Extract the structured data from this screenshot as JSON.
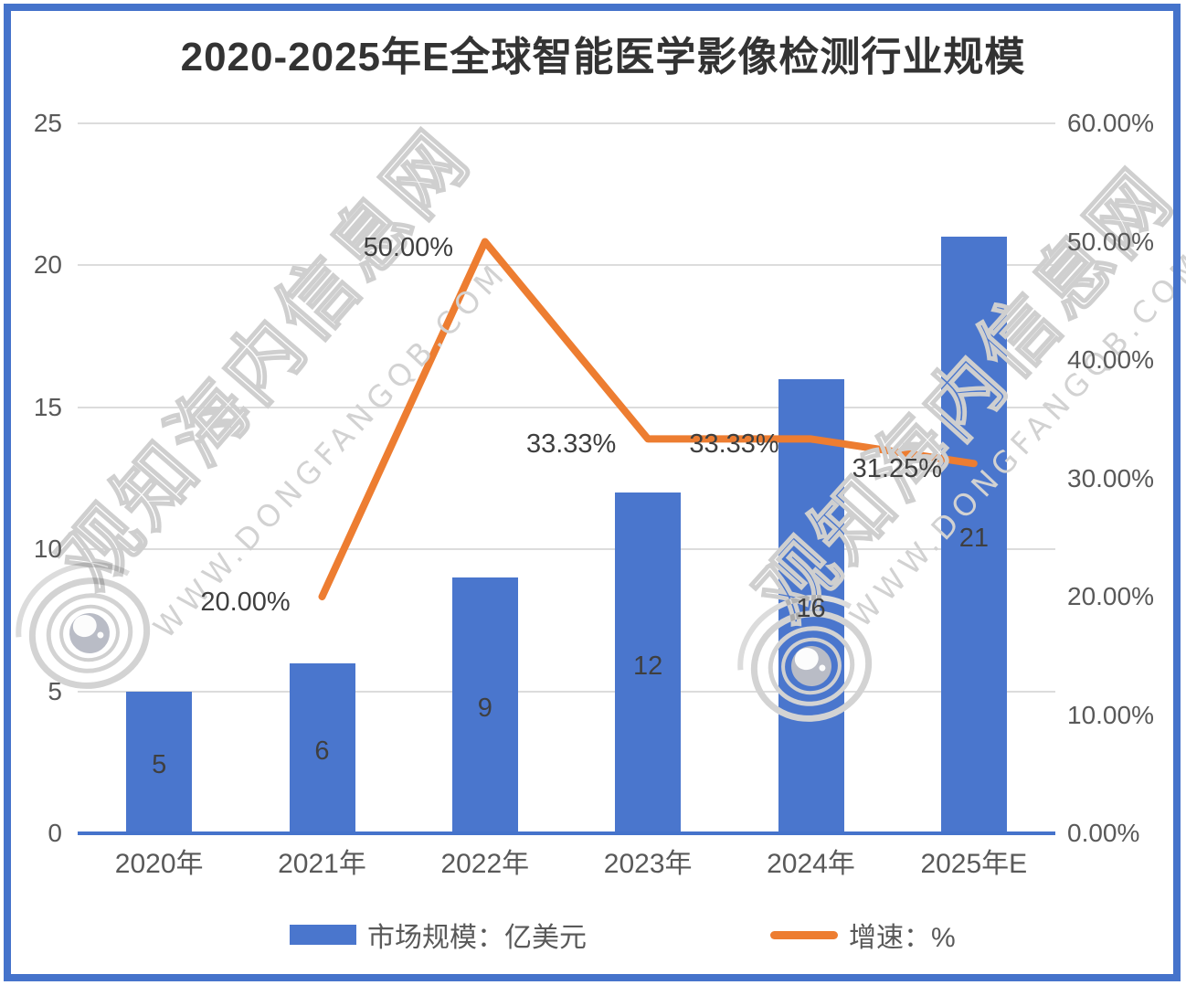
{
  "title": "2020-2025年E全球智能医学影像检测行业规模",
  "chart_data": {
    "type": "bar+line",
    "categories": [
      "2020年",
      "2021年",
      "2022年",
      "2023年",
      "2024年",
      "2025年E"
    ],
    "series": [
      {
        "name": "市场规模：亿美元",
        "type": "bar",
        "axis": "left",
        "color": "#4A76CD",
        "values": [
          5,
          6,
          9,
          12,
          16,
          21
        ],
        "labels": [
          "5",
          "6",
          "9",
          "12",
          "16",
          "21"
        ]
      },
      {
        "name": "增速：%",
        "type": "line",
        "axis": "right",
        "color": "#ED7D31",
        "values": [
          null,
          20,
          50,
          33.33,
          33.33,
          31.25
        ],
        "labels": [
          "",
          "20.00%",
          "50.00%",
          "33.33%",
          "33.33%",
          "31.25%"
        ]
      }
    ],
    "left_axis": {
      "min": 0,
      "max": 25,
      "step": 5,
      "ticks": [
        "0",
        "5",
        "10",
        "15",
        "20",
        "25"
      ]
    },
    "right_axis": {
      "min": 0,
      "max": 60,
      "step": 10,
      "ticks": [
        "0.00%",
        "10.00%",
        "20.00%",
        "30.00%",
        "40.00%",
        "50.00%",
        "60.00%"
      ]
    },
    "grid": "horizontal gridlines at left-axis steps",
    "legend_position": "bottom",
    "data_label_position": {
      "bar": "inside-center",
      "line": "left-of-point"
    }
  },
  "watermark": {
    "text": "观知海内信息网",
    "url": "WWW.DONGFANGQB.COM"
  },
  "colors": {
    "bar": "#4A76CD",
    "line": "#ED7D31",
    "frame": "#4573CB",
    "gridline": "#DCDCDC",
    "tick_text": "#595959",
    "label_text": "#3F3F3F",
    "title_text": "#333333"
  }
}
